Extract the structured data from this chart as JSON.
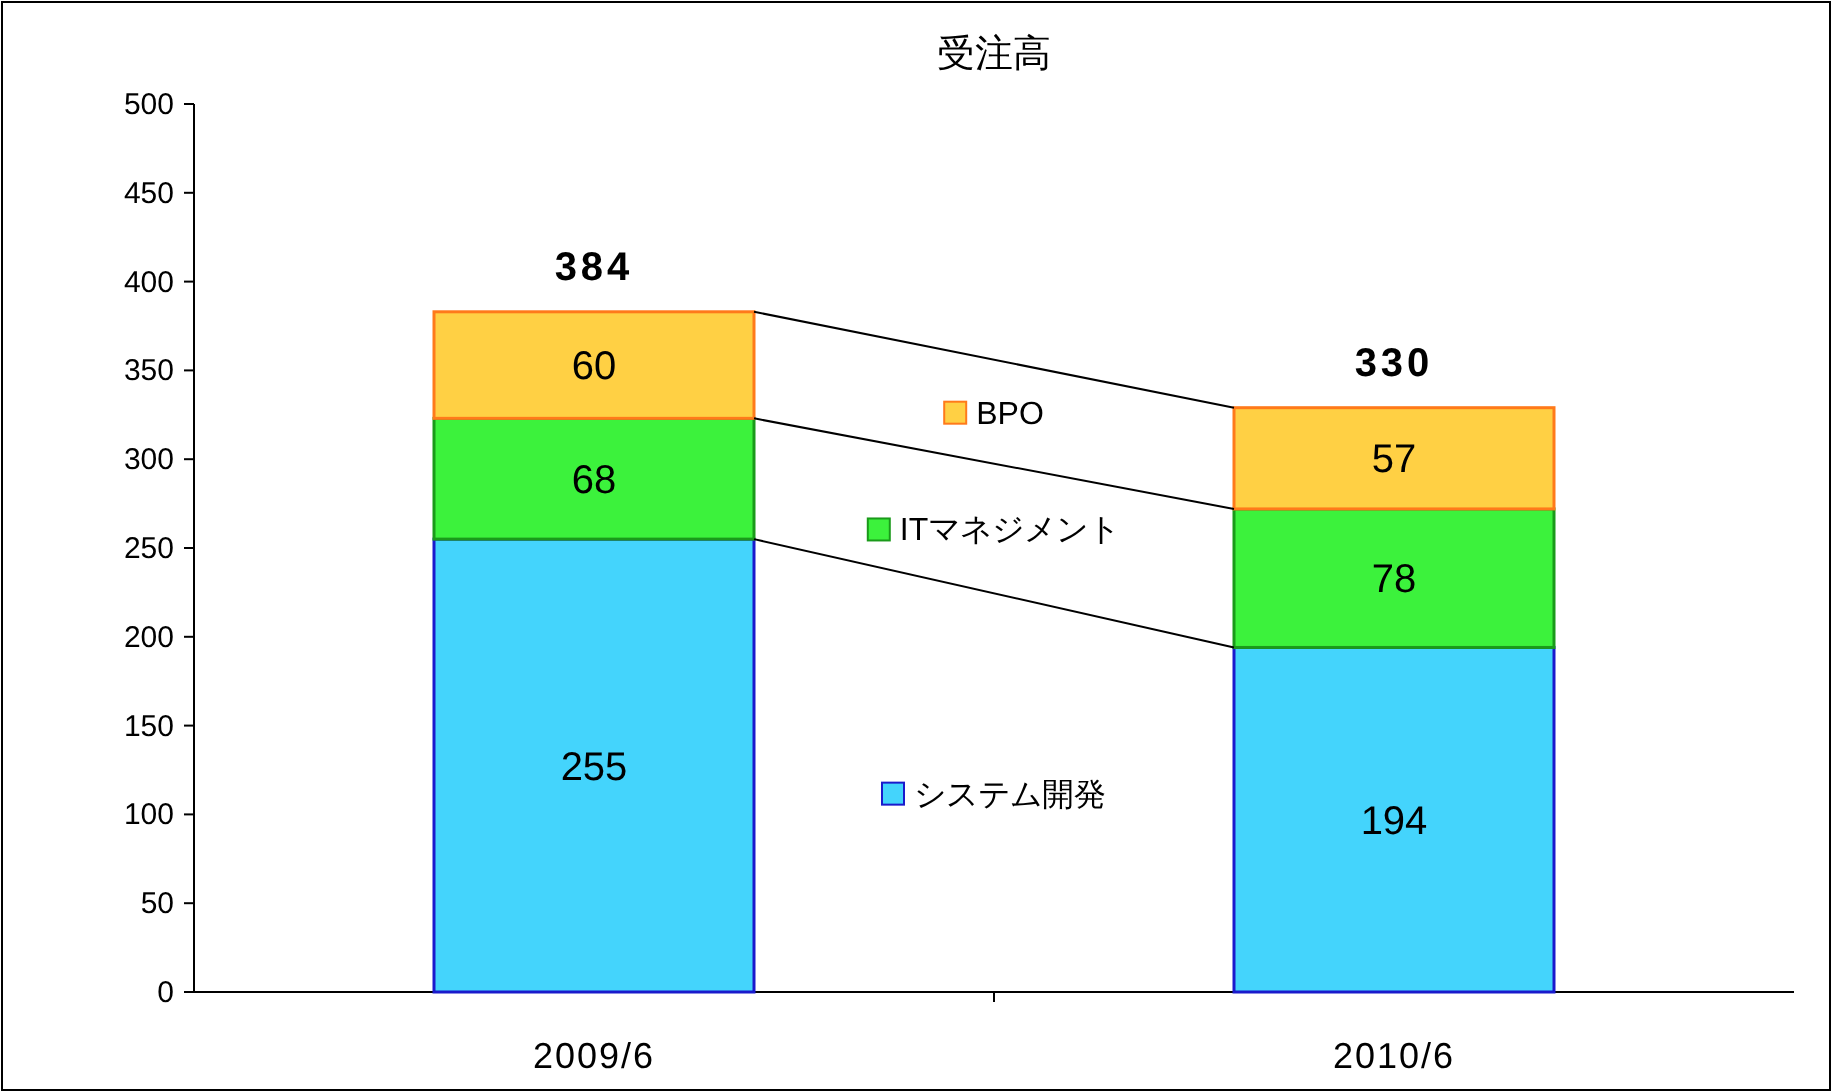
{
  "chart_data": {
    "type": "bar",
    "stacked": true,
    "title": "受注高",
    "categories": [
      "2009/6",
      "2010/6"
    ],
    "series": [
      {
        "name": "システム開発",
        "color": "#44d4fc",
        "values": [
          255,
          194
        ]
      },
      {
        "name": "ITマネジメント",
        "color": "#3cf23c",
        "values": [
          68,
          78
        ]
      },
      {
        "name": "BPO",
        "color": "#ffd044",
        "values": [
          60,
          57
        ]
      }
    ],
    "ylim": [
      0,
      500
    ],
    "yticks": [
      0,
      50,
      100,
      150,
      200,
      250,
      300,
      350,
      400,
      450,
      500
    ],
    "data_labels": true,
    "totals": [
      "384",
      "330"
    ],
    "grid": false,
    "legend": "center"
  }
}
